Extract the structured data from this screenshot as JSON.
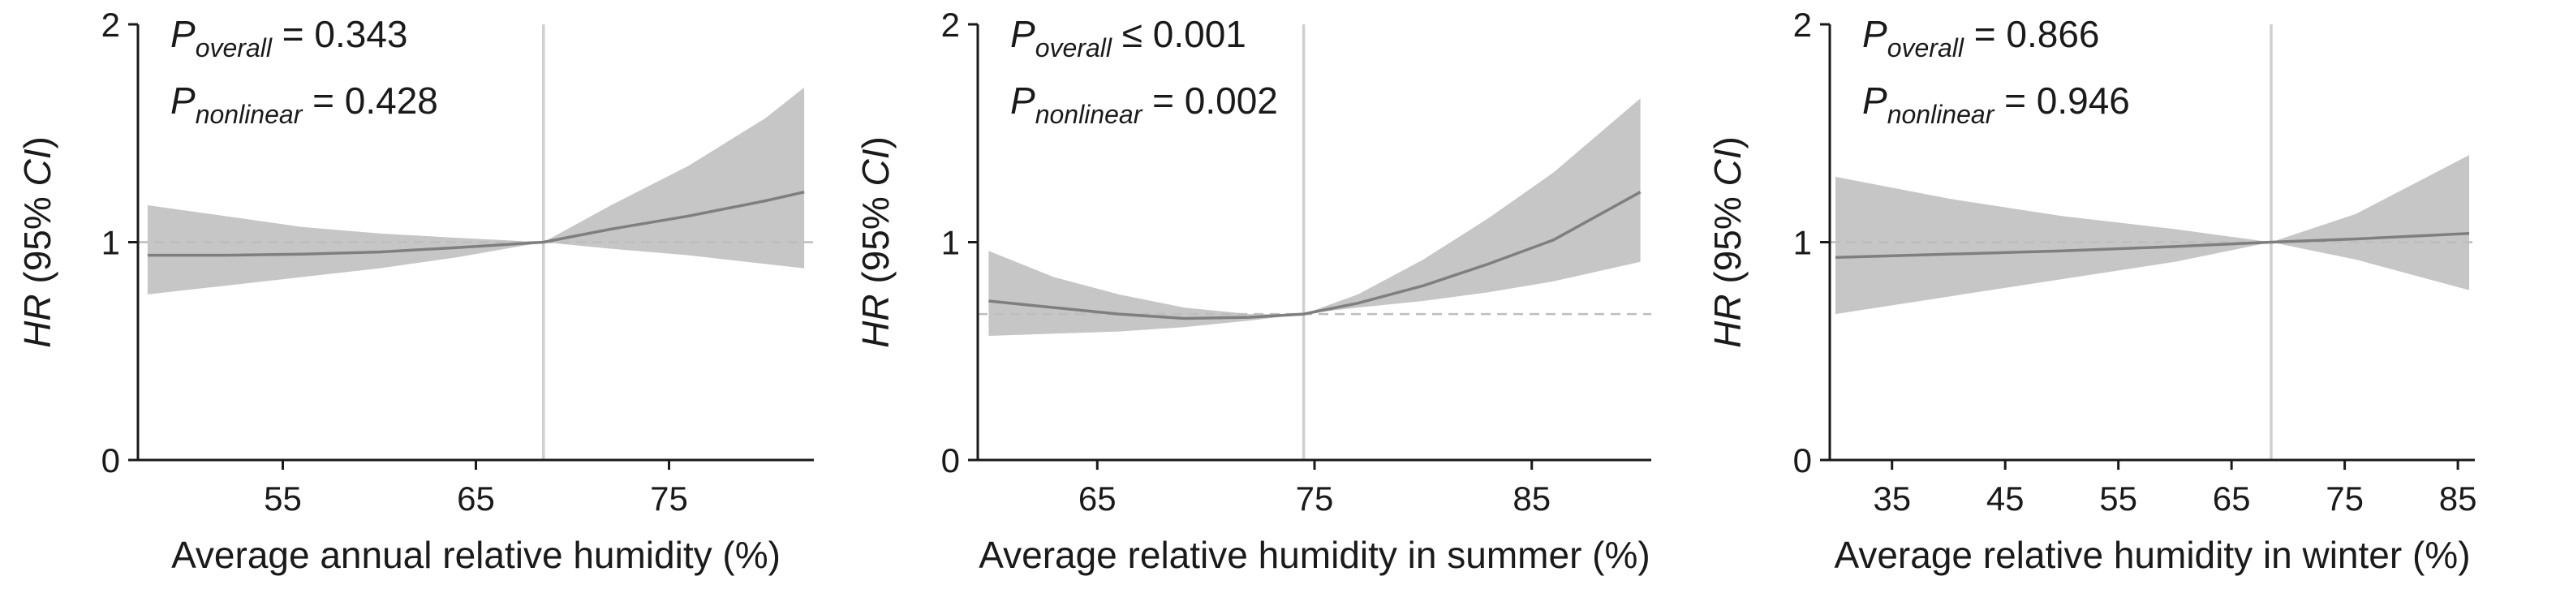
{
  "chart_data": [
    {
      "type": "line",
      "id": "annual",
      "xlabel": "Average annual relative humidity (%)",
      "ylabel": {
        "italic": "HR",
        "rest": " (95% ",
        "ci": "CI",
        "close": ")"
      },
      "xlim": [
        47.5,
        82.5
      ],
      "ylim": [
        0,
        2
      ],
      "xticks": [
        55,
        65,
        75
      ],
      "yticks": [
        0,
        1,
        2
      ],
      "reference_x": 68.5,
      "reference_hr": 1.0,
      "p_overall": {
        "p": "P",
        "sub": "overall",
        "op": " = ",
        "value": "0.343"
      },
      "p_nonlinear": {
        "p": "P",
        "sub": "nonlinear",
        "op": " = ",
        "value": "0.428"
      },
      "series": [
        {
          "x": [
            48,
            52,
            56,
            60,
            64,
            68.5,
            72,
            76,
            80,
            82
          ],
          "hr": [
            0.94,
            0.94,
            0.945,
            0.955,
            0.975,
            1.0,
            1.06,
            1.12,
            1.19,
            1.23
          ],
          "lower": [
            0.76,
            0.8,
            0.84,
            0.88,
            0.93,
            1.0,
            0.97,
            0.94,
            0.9,
            0.88
          ],
          "upper": [
            1.17,
            1.12,
            1.07,
            1.04,
            1.02,
            1.0,
            1.17,
            1.35,
            1.57,
            1.71
          ]
        }
      ]
    },
    {
      "type": "line",
      "id": "summer",
      "xlabel": "Average relative humidity in summer (%)",
      "ylabel": {
        "italic": "HR",
        "rest": " (95% ",
        "ci": "CI",
        "close": ")"
      },
      "xlim": [
        59.5,
        90.5
      ],
      "ylim": [
        0,
        2
      ],
      "xticks": [
        65,
        75,
        85
      ],
      "yticks": [
        0,
        1,
        2
      ],
      "reference_x": 74.5,
      "reference_hr": 0.67,
      "p_overall": {
        "p": "P",
        "sub": "overall",
        "op": " ≤ ",
        "value": "0.001"
      },
      "p_nonlinear": {
        "p": "P",
        "sub": "nonlinear",
        "op": " = ",
        "value": "0.002"
      },
      "series": [
        {
          "x": [
            60,
            63,
            66,
            69,
            72,
            74.5,
            77,
            80,
            83,
            86,
            90
          ],
          "hr": [
            0.73,
            0.7,
            0.67,
            0.65,
            0.655,
            0.67,
            0.72,
            0.8,
            0.9,
            1.01,
            1.23
          ],
          "lower": [
            0.57,
            0.58,
            0.59,
            0.61,
            0.64,
            0.67,
            0.7,
            0.73,
            0.77,
            0.82,
            0.91
          ],
          "upper": [
            0.96,
            0.84,
            0.76,
            0.7,
            0.67,
            0.67,
            0.76,
            0.92,
            1.11,
            1.32,
            1.66
          ]
        }
      ]
    },
    {
      "type": "line",
      "id": "winter",
      "xlabel": "Average relative humidity in winter (%)",
      "ylabel": {
        "italic": "HR",
        "rest": " (95% ",
        "ci": "CI",
        "close": ")"
      },
      "xlim": [
        29.5,
        86.5
      ],
      "ylim": [
        0,
        2
      ],
      "xticks": [
        35,
        45,
        55,
        65,
        75,
        85
      ],
      "yticks": [
        0,
        1,
        2
      ],
      "reference_x": 68.5,
      "reference_hr": 1.0,
      "p_overall": {
        "p": "P",
        "sub": "overall",
        "op": " = ",
        "value": "0.866"
      },
      "p_nonlinear": {
        "p": "P",
        "sub": "nonlinear",
        "op": " = ",
        "value": "0.946"
      },
      "series": [
        {
          "x": [
            30,
            40,
            50,
            60,
            68.5,
            76,
            86
          ],
          "hr": [
            0.93,
            0.945,
            0.96,
            0.98,
            1.0,
            1.015,
            1.04
          ],
          "lower": [
            0.67,
            0.75,
            0.83,
            0.91,
            1.0,
            0.92,
            0.78
          ],
          "upper": [
            1.3,
            1.2,
            1.12,
            1.06,
            1.0,
            1.13,
            1.4
          ]
        }
      ]
    }
  ]
}
